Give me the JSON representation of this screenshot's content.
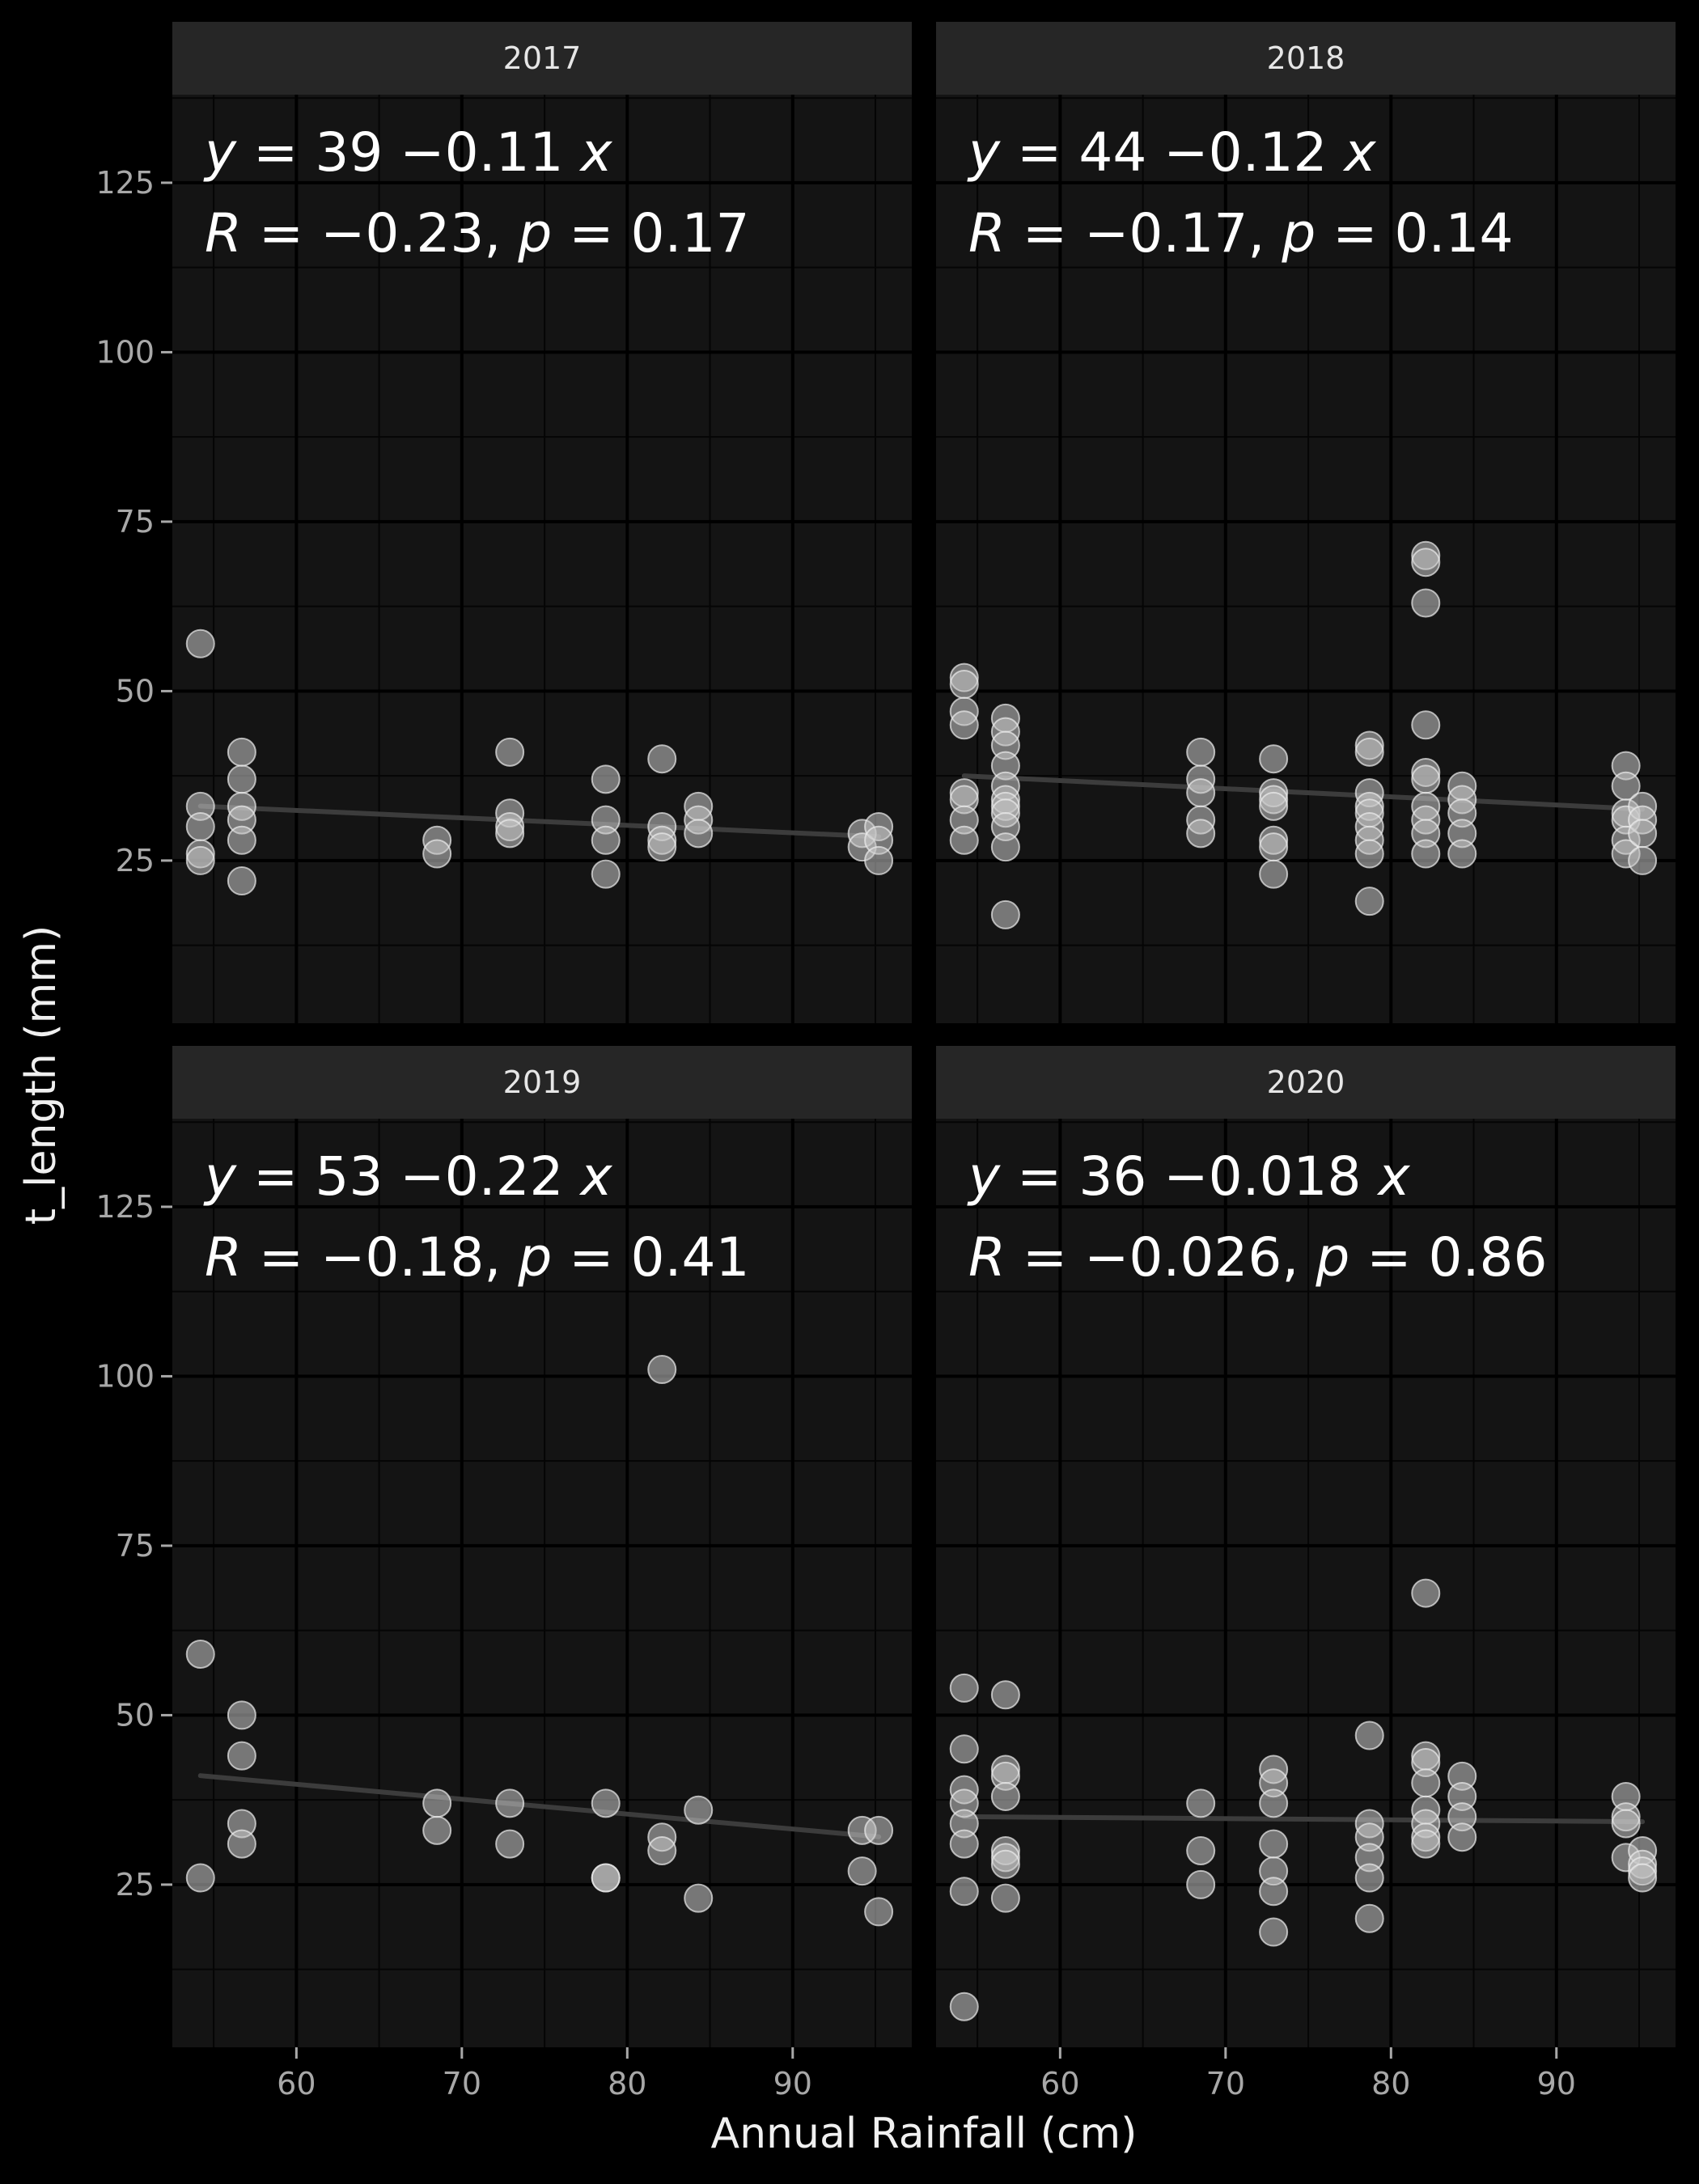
{
  "chart_data": {
    "type": "scatter",
    "xlabel": "Annual Rainfall (cm)",
    "ylabel": "t_length (mm)",
    "xlim": [
      52.5,
      97.2
    ],
    "ylim": [
      1,
      138
    ],
    "x_ticks": [
      60,
      70,
      80,
      90
    ],
    "y_ticks": [
      25,
      50,
      75,
      100,
      125
    ],
    "grid": true,
    "theme_colors": {
      "background": "#000000",
      "panel": "#141414",
      "strip": "#262626",
      "grid_major": "#000000",
      "grid_minor": "#050505",
      "point_fill": "#c8c8c8",
      "point_stroke": "#ececec",
      "trend_line": "#3c3c3c"
    },
    "panels": [
      {
        "strip": "2017",
        "equation": {
          "a": "39",
          "b": "0.11",
          "r": "0.23",
          "p": "0.17"
        },
        "trend": {
          "intercept": 39,
          "slope": -0.11,
          "x_range": [
            54.2,
            95.2
          ]
        },
        "points": [
          [
            54.2,
            57
          ],
          [
            54.2,
            33
          ],
          [
            54.2,
            30
          ],
          [
            54.2,
            26
          ],
          [
            54.2,
            25
          ],
          [
            56.7,
            41
          ],
          [
            56.7,
            37
          ],
          [
            56.7,
            33
          ],
          [
            56.7,
            31
          ],
          [
            56.7,
            28
          ],
          [
            56.7,
            22
          ],
          [
            68.5,
            28
          ],
          [
            68.5,
            26
          ],
          [
            72.9,
            41
          ],
          [
            72.9,
            32
          ],
          [
            72.9,
            30
          ],
          [
            72.9,
            29
          ],
          [
            78.7,
            37
          ],
          [
            78.7,
            31
          ],
          [
            78.7,
            28
          ],
          [
            78.7,
            23
          ],
          [
            82.1,
            40
          ],
          [
            82.1,
            30
          ],
          [
            82.1,
            28
          ],
          [
            82.1,
            27
          ],
          [
            84.3,
            33
          ],
          [
            84.3,
            31
          ],
          [
            84.3,
            29
          ],
          [
            94.2,
            29
          ],
          [
            94.2,
            27
          ],
          [
            95.2,
            30
          ],
          [
            95.2,
            28
          ],
          [
            95.2,
            25
          ]
        ]
      },
      {
        "strip": "2018",
        "equation": {
          "a": "44",
          "b": "0.12",
          "r": "0.17",
          "p": "0.14"
        },
        "trend": {
          "intercept": 44,
          "slope": -0.12,
          "x_range": [
            54.2,
            95.2
          ]
        },
        "points": [
          [
            54.2,
            52
          ],
          [
            54.2,
            51
          ],
          [
            54.2,
            47
          ],
          [
            54.2,
            45
          ],
          [
            54.2,
            35
          ],
          [
            54.2,
            34
          ],
          [
            54.2,
            31
          ],
          [
            54.2,
            28
          ],
          [
            56.7,
            46
          ],
          [
            56.7,
            44
          ],
          [
            56.7,
            42
          ],
          [
            56.7,
            39
          ],
          [
            56.7,
            36
          ],
          [
            56.7,
            34
          ],
          [
            56.7,
            33
          ],
          [
            56.7,
            32
          ],
          [
            56.7,
            30
          ],
          [
            56.7,
            27
          ],
          [
            56.7,
            17
          ],
          [
            68.5,
            41
          ],
          [
            68.5,
            37
          ],
          [
            68.5,
            35
          ],
          [
            68.5,
            31
          ],
          [
            68.5,
            29
          ],
          [
            72.9,
            40
          ],
          [
            72.9,
            35
          ],
          [
            72.9,
            34
          ],
          [
            72.9,
            33
          ],
          [
            72.9,
            28
          ],
          [
            72.9,
            27
          ],
          [
            72.9,
            23
          ],
          [
            78.7,
            42
          ],
          [
            78.7,
            41
          ],
          [
            78.7,
            35
          ],
          [
            78.7,
            33
          ],
          [
            78.7,
            32
          ],
          [
            78.7,
            30
          ],
          [
            78.7,
            28
          ],
          [
            78.7,
            26
          ],
          [
            78.7,
            19
          ],
          [
            82.1,
            70
          ],
          [
            82.1,
            69
          ],
          [
            82.1,
            63
          ],
          [
            82.1,
            45
          ],
          [
            82.1,
            38
          ],
          [
            82.1,
            37
          ],
          [
            82.1,
            33
          ],
          [
            82.1,
            31
          ],
          [
            82.1,
            29
          ],
          [
            82.1,
            26
          ],
          [
            84.3,
            36
          ],
          [
            84.3,
            34
          ],
          [
            84.3,
            32
          ],
          [
            84.3,
            29
          ],
          [
            84.3,
            26
          ],
          [
            94.2,
            39
          ],
          [
            94.2,
            36
          ],
          [
            94.2,
            32
          ],
          [
            94.2,
            31
          ],
          [
            94.2,
            28
          ],
          [
            94.2,
            26
          ],
          [
            95.2,
            33
          ],
          [
            95.2,
            31
          ],
          [
            95.2,
            29
          ],
          [
            95.2,
            25
          ]
        ]
      },
      {
        "strip": "2019",
        "equation": {
          "a": "53",
          "b": "0.22",
          "r": "0.18",
          "p": "0.41"
        },
        "trend": {
          "intercept": 53,
          "slope": -0.22,
          "x_range": [
            54.2,
            95.2
          ]
        },
        "points": [
          [
            54.2,
            59
          ],
          [
            54.2,
            26
          ],
          [
            56.7,
            50
          ],
          [
            56.7,
            44
          ],
          [
            56.7,
            34
          ],
          [
            56.7,
            31
          ],
          [
            68.5,
            37
          ],
          [
            68.5,
            33
          ],
          [
            72.9,
            37
          ],
          [
            72.9,
            31
          ],
          [
            78.7,
            37
          ],
          [
            78.7,
            26
          ],
          [
            78.7,
            26
          ],
          [
            82.1,
            101
          ],
          [
            82.1,
            32
          ],
          [
            82.1,
            30
          ],
          [
            84.3,
            36
          ],
          [
            84.3,
            23
          ],
          [
            94.2,
            33
          ],
          [
            94.2,
            27
          ],
          [
            95.2,
            33
          ],
          [
            95.2,
            21
          ]
        ]
      },
      {
        "strip": "2020",
        "equation": {
          "a": "36",
          "b": "0.018",
          "r": "0.026",
          "p": "0.86"
        },
        "trend": {
          "intercept": 36,
          "slope": -0.018,
          "x_range": [
            54.2,
            95.2
          ]
        },
        "points": [
          [
            54.2,
            54
          ],
          [
            54.2,
            45
          ],
          [
            54.2,
            39
          ],
          [
            54.2,
            37
          ],
          [
            54.2,
            34
          ],
          [
            54.2,
            31
          ],
          [
            54.2,
            24
          ],
          [
            54.2,
            7
          ],
          [
            56.7,
            53
          ],
          [
            56.7,
            42
          ],
          [
            56.7,
            41
          ],
          [
            56.7,
            38
          ],
          [
            56.7,
            30
          ],
          [
            56.7,
            29
          ],
          [
            56.7,
            28
          ],
          [
            56.7,
            23
          ],
          [
            68.5,
            37
          ],
          [
            68.5,
            30
          ],
          [
            68.5,
            25
          ],
          [
            72.9,
            42
          ],
          [
            72.9,
            40
          ],
          [
            72.9,
            37
          ],
          [
            72.9,
            31
          ],
          [
            72.9,
            27
          ],
          [
            72.9,
            24
          ],
          [
            72.9,
            18
          ],
          [
            78.7,
            47
          ],
          [
            78.7,
            34
          ],
          [
            78.7,
            32
          ],
          [
            78.7,
            29
          ],
          [
            78.7,
            26
          ],
          [
            78.7,
            20
          ],
          [
            82.1,
            68
          ],
          [
            82.1,
            44
          ],
          [
            82.1,
            43
          ],
          [
            82.1,
            40
          ],
          [
            82.1,
            36
          ],
          [
            82.1,
            34
          ],
          [
            82.1,
            32
          ],
          [
            82.1,
            31
          ],
          [
            84.3,
            41
          ],
          [
            84.3,
            38
          ],
          [
            84.3,
            35
          ],
          [
            84.3,
            32
          ],
          [
            94.2,
            38
          ],
          [
            94.2,
            35
          ],
          [
            94.2,
            34
          ],
          [
            94.2,
            29
          ],
          [
            95.2,
            30
          ],
          [
            95.2,
            28
          ],
          [
            95.2,
            27
          ],
          [
            95.2,
            26
          ]
        ]
      }
    ]
  }
}
